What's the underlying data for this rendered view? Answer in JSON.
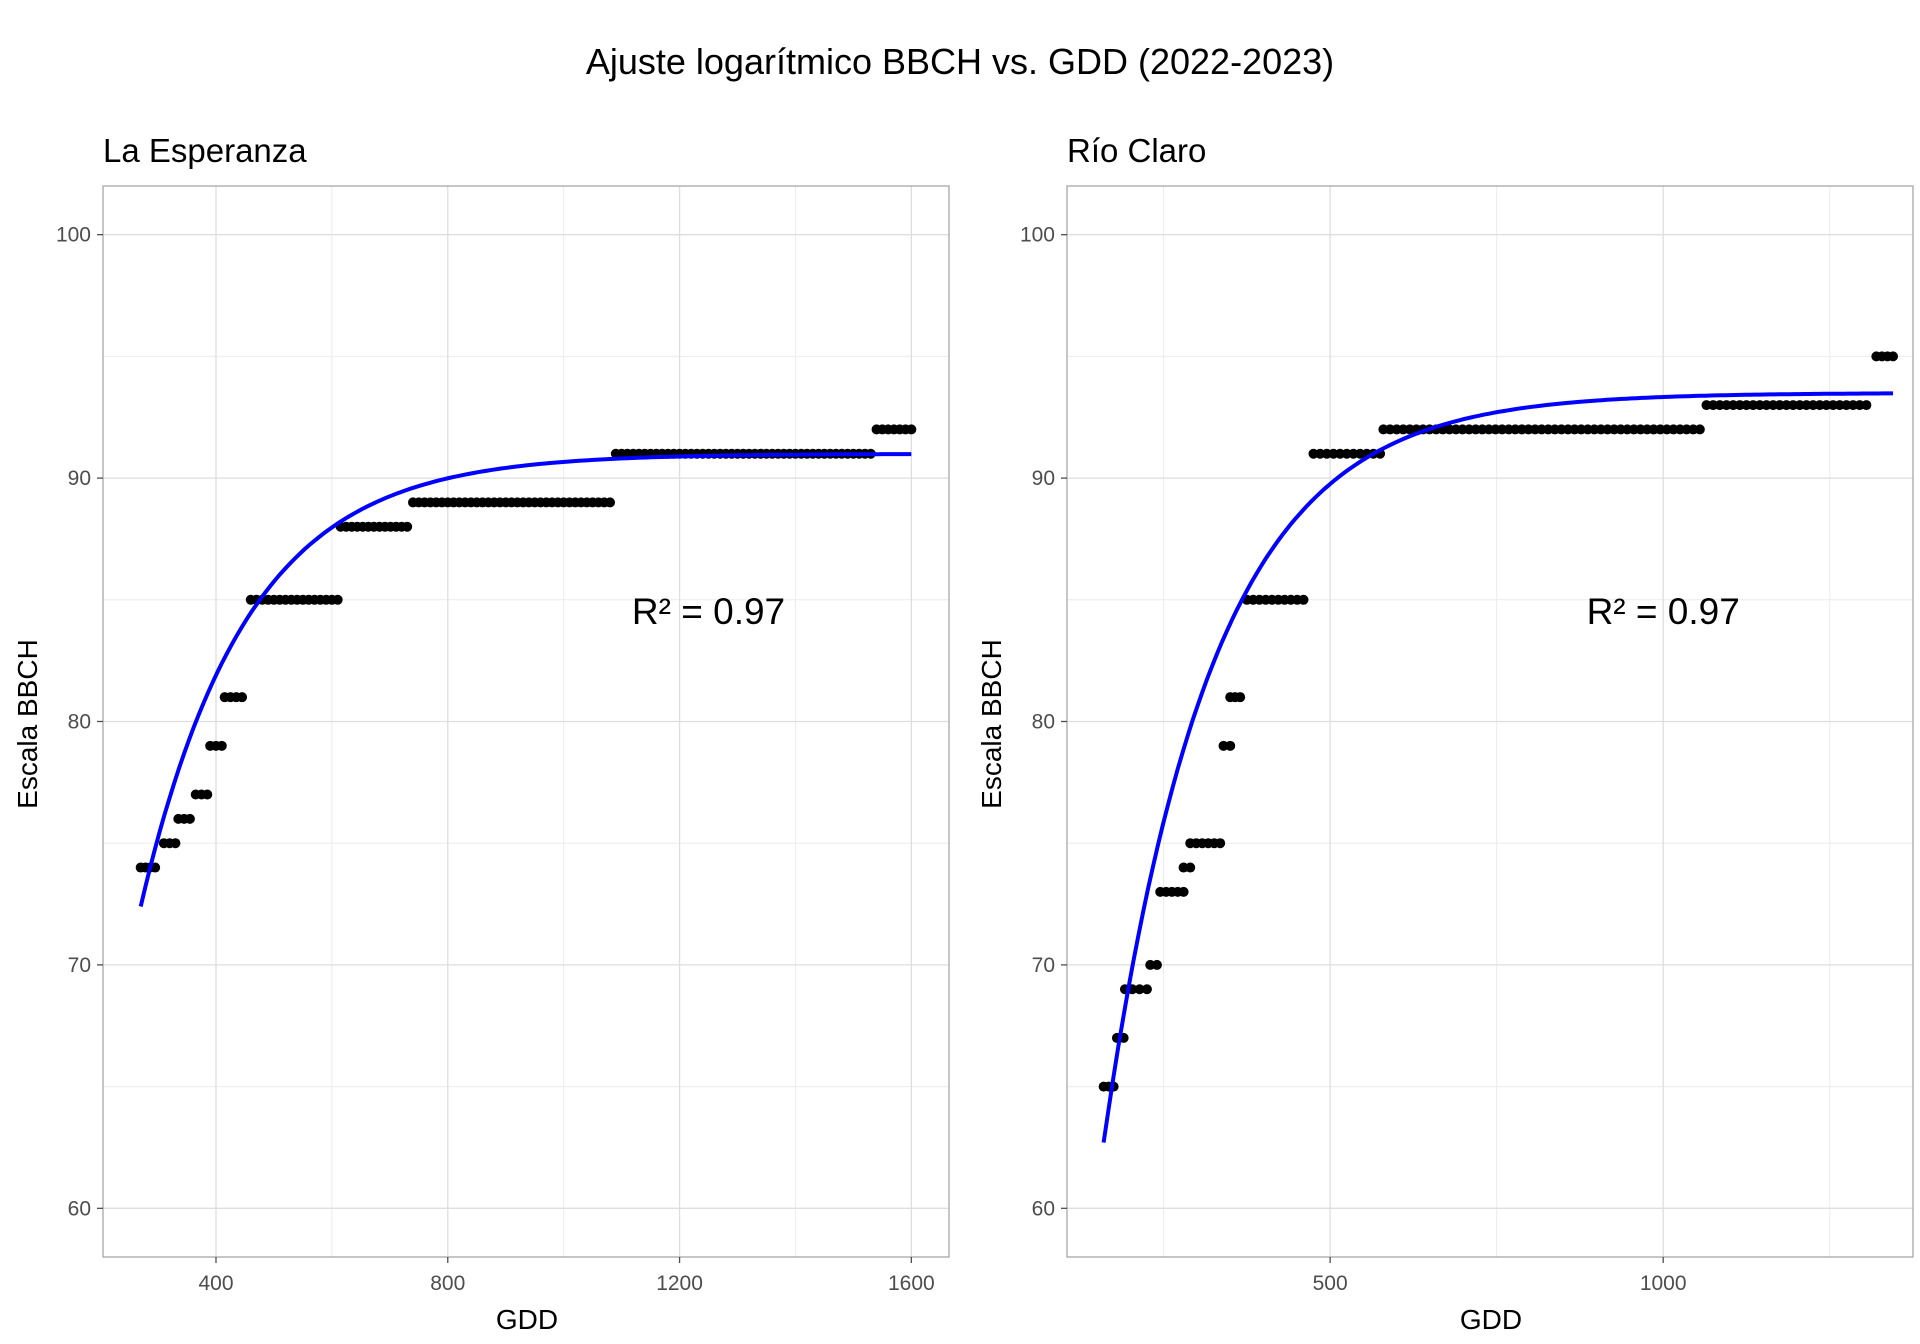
{
  "figure": {
    "title": "Ajuste logarítmico BBCH vs. GDD (2022-2023)"
  },
  "chart_data": [
    {
      "type": "scatter",
      "title": "La Esperanza",
      "xlabel": "GDD",
      "ylabel": "Escala BBCH",
      "xlim": [
        205,
        1665
      ],
      "ylim": [
        58,
        102
      ],
      "x_ticks": [
        400,
        800,
        1200,
        1600
      ],
      "x_minor_ticks": [
        600,
        1000,
        1400
      ],
      "y_ticks": [
        60,
        70,
        80,
        90,
        100
      ],
      "y_minor_ticks": [
        65,
        75,
        85,
        95
      ],
      "grid": true,
      "annotation": {
        "text": "R² = 0.97",
        "x": 1250,
        "y": 84
      },
      "points_color": "#000000",
      "fit_color": "#0000ff",
      "series": [
        {
          "x_start": 270,
          "x_end": 295,
          "y": 74
        },
        {
          "x_start": 310,
          "x_end": 330,
          "y": 75
        },
        {
          "x_start": 335,
          "x_end": 355,
          "y": 76
        },
        {
          "x_start": 365,
          "x_end": 385,
          "y": 77
        },
        {
          "x_start": 390,
          "x_end": 410,
          "y": 79
        },
        {
          "x_start": 415,
          "x_end": 445,
          "y": 81
        },
        {
          "x_start": 460,
          "x_end": 610,
          "y": 85
        },
        {
          "x_start": 615,
          "x_end": 730,
          "y": 88
        },
        {
          "x_start": 740,
          "x_end": 1080,
          "y": 89
        },
        {
          "x_start": 1090,
          "x_end": 1530,
          "y": 91
        },
        {
          "x_start": 1540,
          "x_end": 1600,
          "y": 92
        }
      ],
      "fit": {
        "x_start": 270,
        "x_end": 1600,
        "y_start": 72.4,
        "asymptote": 91.0,
        "rate": 0.0055
      }
    },
    {
      "type": "scatter",
      "title": "Río Claro",
      "xlabel": "GDD",
      "ylabel": "Escala BBCH",
      "xlim": [
        105,
        1375
      ],
      "ylim": [
        58,
        102
      ],
      "x_ticks": [
        500,
        1000
      ],
      "x_minor_ticks": [
        250,
        750,
        1250
      ],
      "y_ticks": [
        60,
        70,
        80,
        90,
        100
      ],
      "y_minor_ticks": [
        65,
        75,
        85,
        95
      ],
      "grid": true,
      "annotation": {
        "text": "R² = 0.97",
        "x": 1000,
        "y": 84
      },
      "points_color": "#000000",
      "fit_color": "#0000ff",
      "series": [
        {
          "x_start": 160,
          "x_end": 175,
          "y": 65
        },
        {
          "x_start": 180,
          "x_end": 190,
          "y": 67
        },
        {
          "x_start": 192,
          "x_end": 225,
          "y": 69
        },
        {
          "x_start": 230,
          "x_end": 240,
          "y": 70
        },
        {
          "x_start": 245,
          "x_end": 280,
          "y": 73
        },
        {
          "x_start": 280,
          "x_end": 290,
          "y": 74
        },
        {
          "x_start": 290,
          "x_end": 335,
          "y": 75
        },
        {
          "x_start": 340,
          "x_end": 350,
          "y": 79
        },
        {
          "x_start": 350,
          "x_end": 365,
          "y": 81
        },
        {
          "x_start": 375,
          "x_end": 460,
          "y": 85
        },
        {
          "x_start": 475,
          "x_end": 575,
          "y": 91
        },
        {
          "x_start": 580,
          "x_end": 1055,
          "y": 92
        },
        {
          "x_start": 1065,
          "x_end": 1305,
          "y": 93
        },
        {
          "x_start": 1320,
          "x_end": 1345,
          "y": 95
        }
      ],
      "fit": {
        "x_start": 160,
        "x_end": 1345,
        "y_start": 62.7,
        "asymptote": 93.5,
        "rate": 0.0062
      }
    }
  ]
}
